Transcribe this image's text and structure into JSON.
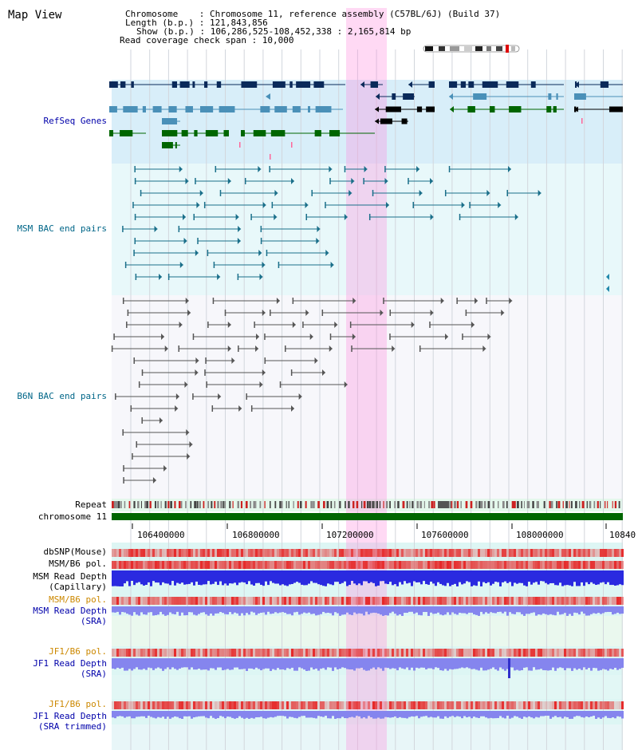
{
  "title": "Map View",
  "info": {
    "chromosome": "Chromosome    : Chromosome 11, reference assembly (C57BL/6J) (Build 37)",
    "length": "Length (b.p.) : 121,843,856",
    "show": "Show (b.p.) : 106,286,525-108,452,338 : 2,165,814 bp",
    "coverage": "Read coverage check span : 10,000"
  },
  "tracks": {
    "refseq": "RefSeq Genes",
    "msm_bac": "MSM BAC end pairs",
    "b6n_bac": "B6N BAC end pairs",
    "repeat": "Repeat",
    "chromosome": "chromosome 11",
    "dbsnp": "dbSNP(Mouse)",
    "msm_b6_pol_1": "MSM/B6 pol.",
    "msm_read_depth_cap_1": "MSM Read Depth",
    "msm_read_depth_cap_2": "(Capillary)",
    "msm_b6_pol_2": "MSM/B6 pol.",
    "msm_read_depth_sra_1": "MSM Read Depth",
    "msm_read_depth_sra_2": "(SRA)",
    "jf1_b6_pol_1": "JF1/B6 pol.",
    "jf1_read_depth_sra_1": "JF1 Read Depth",
    "jf1_read_depth_sra_2": "(SRA)",
    "jf1_b6_pol_2": "JF1/B6 pol.",
    "jf1_read_depth_trim_1": "JF1 Read Depth",
    "jf1_read_depth_trim_2": "(SRA trimmed)"
  },
  "axis": {
    "ticks": [
      "106400000",
      "106800000",
      "107200000",
      "107600000",
      "108000000",
      "10840"
    ]
  },
  "colors": {
    "label_blue": "#0000aa",
    "label_orange": "#cc8800",
    "label_teal": "#006688",
    "refseq_dark": "#0a2a5a",
    "refseq_mid": "#4a90b8",
    "refseq_green": "#006600",
    "highlight": "#ff88dd"
  }
}
